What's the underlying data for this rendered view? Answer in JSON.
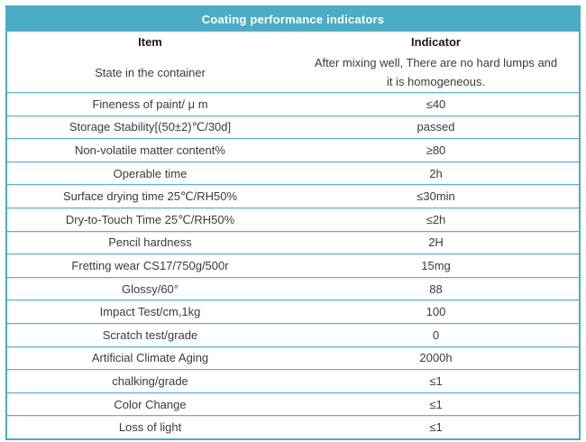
{
  "table": {
    "title": "Coating performance indicators",
    "columns": {
      "item": "Item",
      "indicator": "Indicator"
    },
    "rows": [
      {
        "item": "State in the container",
        "indicator": "After mixing well, There are no hard lumps and\nit is homogeneous."
      },
      {
        "item": "Fineness of paint/ μ m",
        "indicator": "≤40"
      },
      {
        "item": "Storage Stability[(50±2)℃/30d]",
        "indicator": "passed"
      },
      {
        "item": "Non-volatile matter content%",
        "indicator": "≥80"
      },
      {
        "item": "Operable time",
        "indicator": "2h"
      },
      {
        "item": "Surface drying time 25℃/RH50%",
        "indicator": "≤30min"
      },
      {
        "item": "Dry-to-Touch Time 25℃/RH50%",
        "indicator": "≤2h"
      },
      {
        "item": "Pencil hardness",
        "indicator": "2H"
      },
      {
        "item": "Fretting wear CS17/750g/500r",
        "indicator": "15mg"
      },
      {
        "item": "Glossy/60°",
        "indicator": "88"
      },
      {
        "item": "Impact Test/cm,1kg",
        "indicator": "100"
      },
      {
        "item": "Scratch test/grade",
        "indicator": "0"
      },
      {
        "item": "Artificial Climate Aging",
        "indicator": "2000h"
      },
      {
        "item": "chalking/grade",
        "indicator": "≤1"
      },
      {
        "item": "Color Change",
        "indicator": "≤1"
      },
      {
        "item": "Loss of light",
        "indicator": "≤1"
      }
    ],
    "colors": {
      "header_bg": "#4bacc6",
      "header_text": "#ffffff",
      "border_outer": "#4bacc6",
      "divider_dark": "#5fb3ca",
      "divider_light": "#cfeaf2",
      "body_text": "#3b3b3b"
    }
  }
}
